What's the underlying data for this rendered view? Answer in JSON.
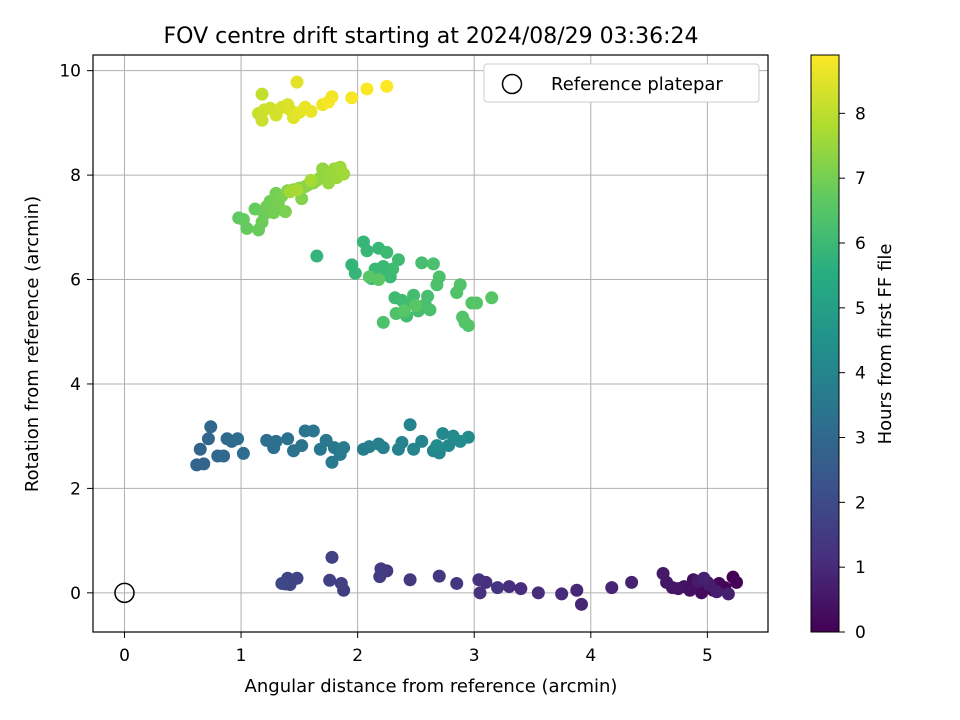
{
  "chart_data": {
    "type": "scatter",
    "title": "FOV centre drift starting at 2024/08/29 03:36:24",
    "xlabel": "Angular distance from reference (arcmin)",
    "ylabel": "Rotation from reference (arcmin)",
    "xlim": [
      -0.27,
      5.52
    ],
    "ylim": [
      -0.75,
      10.3
    ],
    "xticks": [
      0,
      1,
      2,
      3,
      4,
      5
    ],
    "yticks": [
      0,
      2,
      4,
      6,
      8,
      10
    ],
    "grid": true,
    "legend": {
      "placement": "top-right",
      "entries": [
        "Reference platepar"
      ]
    },
    "reference_point": {
      "x": 0,
      "y": 0,
      "label": "Reference platepar"
    },
    "colorbar": {
      "label": "Hours from first FF file",
      "range": [
        0,
        8.9
      ],
      "ticks": [
        0,
        1,
        2,
        3,
        4,
        5,
        6,
        7,
        8
      ],
      "colormap": "viridis"
    },
    "series": [
      {
        "color_value_hours": "0.0-1.9",
        "points": [
          [
            5.22,
            0.3
          ],
          [
            5.25,
            0.2
          ],
          [
            5.15,
            0.1
          ],
          [
            5.1,
            0.18
          ],
          [
            5.05,
            0.05
          ],
          [
            5.0,
            0.2
          ],
          [
            4.95,
            0.0
          ],
          [
            4.9,
            0.1
          ],
          [
            4.88,
            0.25
          ],
          [
            4.85,
            0.05
          ],
          [
            4.8,
            0.12
          ],
          [
            4.75,
            0.08
          ],
          [
            4.7,
            0.1
          ],
          [
            4.65,
            0.2
          ],
          [
            4.62,
            0.37
          ],
          [
            4.92,
            0.22
          ],
          [
            5.02,
            0.15
          ],
          [
            5.08,
            0.02
          ],
          [
            5.18,
            -0.02
          ],
          [
            4.97,
            0.28
          ],
          [
            4.35,
            0.2
          ],
          [
            4.18,
            0.1
          ],
          [
            3.92,
            -0.22
          ],
          [
            3.88,
            0.05
          ],
          [
            3.75,
            -0.02
          ],
          [
            3.55,
            0.0
          ],
          [
            3.4,
            0.08
          ],
          [
            3.3,
            0.12
          ],
          [
            3.1,
            0.2
          ],
          [
            3.05,
            0.0
          ],
          [
            3.04,
            0.25
          ],
          [
            3.2,
            0.1
          ],
          [
            2.85,
            0.18
          ],
          [
            2.7,
            0.32
          ],
          [
            2.45,
            0.25
          ],
          [
            2.25,
            0.42
          ],
          [
            2.2,
            0.46
          ],
          [
            2.19,
            0.31
          ],
          [
            1.88,
            0.05
          ],
          [
            1.86,
            0.18
          ],
          [
            1.76,
            0.24
          ],
          [
            1.78,
            0.68
          ],
          [
            1.48,
            0.28
          ],
          [
            1.4,
            0.28
          ],
          [
            1.38,
            0.17
          ],
          [
            1.42,
            0.16
          ],
          [
            1.35,
            0.18
          ]
        ]
      },
      {
        "color_value_hours": "2.8-4.3",
        "points": [
          [
            0.62,
            2.45
          ],
          [
            0.68,
            2.47
          ],
          [
            0.65,
            2.75
          ],
          [
            0.72,
            2.95
          ],
          [
            0.74,
            3.18
          ],
          [
            0.8,
            2.62
          ],
          [
            0.85,
            2.62
          ],
          [
            0.88,
            2.95
          ],
          [
            0.92,
            2.9
          ],
          [
            0.97,
            2.95
          ],
          [
            1.02,
            2.67
          ],
          [
            1.22,
            2.92
          ],
          [
            1.28,
            2.78
          ],
          [
            1.3,
            2.9
          ],
          [
            1.4,
            2.95
          ],
          [
            1.45,
            2.72
          ],
          [
            1.52,
            2.82
          ],
          [
            1.55,
            3.1
          ],
          [
            1.62,
            3.1
          ],
          [
            1.68,
            2.75
          ],
          [
            1.73,
            2.92
          ],
          [
            1.78,
            2.5
          ],
          [
            1.8,
            2.78
          ],
          [
            1.85,
            2.65
          ],
          [
            1.88,
            2.78
          ],
          [
            2.05,
            2.75
          ],
          [
            2.1,
            2.8
          ],
          [
            2.18,
            2.85
          ],
          [
            2.22,
            2.78
          ],
          [
            2.35,
            2.75
          ],
          [
            2.38,
            2.88
          ],
          [
            2.45,
            3.22
          ],
          [
            2.48,
            2.75
          ],
          [
            2.55,
            2.9
          ],
          [
            2.65,
            2.72
          ],
          [
            2.7,
            2.68
          ],
          [
            2.73,
            3.05
          ],
          [
            2.78,
            2.82
          ],
          [
            2.82,
            3.0
          ],
          [
            2.95,
            2.98
          ],
          [
            2.68,
            2.82
          ],
          [
            2.88,
            2.9
          ]
        ]
      },
      {
        "color_value_hours": "5.8-6.6",
        "points": [
          [
            1.65,
            6.45
          ],
          [
            1.95,
            6.28
          ],
          [
            1.98,
            6.12
          ],
          [
            2.05,
            6.72
          ],
          [
            2.08,
            6.55
          ],
          [
            2.12,
            6.02
          ],
          [
            2.15,
            6.2
          ],
          [
            2.18,
            6.6
          ],
          [
            2.2,
            6.1
          ],
          [
            2.22,
            6.25
          ],
          [
            2.25,
            6.52
          ],
          [
            2.28,
            6.05
          ],
          [
            2.3,
            6.2
          ],
          [
            2.32,
            5.65
          ],
          [
            2.35,
            6.38
          ],
          [
            2.38,
            5.6
          ],
          [
            2.42,
            5.3
          ],
          [
            2.45,
            5.55
          ],
          [
            2.48,
            5.7
          ],
          [
            2.52,
            5.4
          ],
          [
            2.55,
            6.32
          ],
          [
            2.58,
            5.52
          ],
          [
            2.6,
            5.68
          ],
          [
            2.62,
            5.42
          ],
          [
            2.65,
            6.3
          ],
          [
            2.68,
            5.9
          ],
          [
            2.7,
            6.05
          ],
          [
            2.22,
            5.18
          ],
          [
            2.33,
            5.35
          ],
          [
            2.85,
            5.75
          ],
          [
            2.88,
            5.9
          ],
          [
            2.9,
            5.28
          ],
          [
            2.92,
            5.18
          ],
          [
            2.95,
            5.12
          ],
          [
            2.98,
            5.55
          ],
          [
            3.02,
            5.55
          ],
          [
            3.15,
            5.65
          ],
          [
            2.4,
            5.4
          ],
          [
            2.5,
            5.5
          ],
          [
            2.1,
            6.05
          ],
          [
            2.18,
            6.0
          ]
        ]
      },
      {
        "color_value_hours": "6.7-7.7",
        "points": [
          [
            0.98,
            7.18
          ],
          [
            1.02,
            7.15
          ],
          [
            1.05,
            6.98
          ],
          [
            1.12,
            7.35
          ],
          [
            1.15,
            6.95
          ],
          [
            1.18,
            7.1
          ],
          [
            1.2,
            7.25
          ],
          [
            1.22,
            7.4
          ],
          [
            1.25,
            7.5
          ],
          [
            1.28,
            7.28
          ],
          [
            1.3,
            7.65
          ],
          [
            1.32,
            7.45
          ],
          [
            1.35,
            7.6
          ],
          [
            1.38,
            7.3
          ],
          [
            1.4,
            7.7
          ],
          [
            1.45,
            7.72
          ],
          [
            1.5,
            7.75
          ],
          [
            1.52,
            7.55
          ],
          [
            1.55,
            7.78
          ],
          [
            1.58,
            7.82
          ],
          [
            1.62,
            7.85
          ],
          [
            1.65,
            7.9
          ],
          [
            1.68,
            7.95
          ],
          [
            1.7,
            8.12
          ],
          [
            1.72,
            8.0
          ],
          [
            1.75,
            7.85
          ],
          [
            1.78,
            8.05
          ],
          [
            1.8,
            8.12
          ],
          [
            1.82,
            7.95
          ],
          [
            1.85,
            8.15
          ],
          [
            1.88,
            8.02
          ],
          [
            1.42,
            7.68
          ],
          [
            1.48,
            7.72
          ],
          [
            1.6,
            7.9
          ]
        ]
      },
      {
        "color_value_hours": "8.1-8.9",
        "points": [
          [
            1.18,
            9.55
          ],
          [
            1.15,
            9.18
          ],
          [
            1.18,
            9.05
          ],
          [
            1.2,
            9.25
          ],
          [
            1.25,
            9.28
          ],
          [
            1.3,
            9.15
          ],
          [
            1.35,
            9.3
          ],
          [
            1.4,
            9.35
          ],
          [
            1.42,
            9.25
          ],
          [
            1.45,
            9.1
          ],
          [
            1.48,
            9.78
          ],
          [
            1.5,
            9.2
          ],
          [
            1.55,
            9.3
          ],
          [
            1.6,
            9.22
          ],
          [
            1.7,
            9.35
          ],
          [
            1.78,
            9.5
          ],
          [
            1.75,
            9.4
          ],
          [
            1.95,
            9.48
          ],
          [
            2.08,
            9.65
          ],
          [
            2.25,
            9.7
          ]
        ]
      }
    ]
  }
}
